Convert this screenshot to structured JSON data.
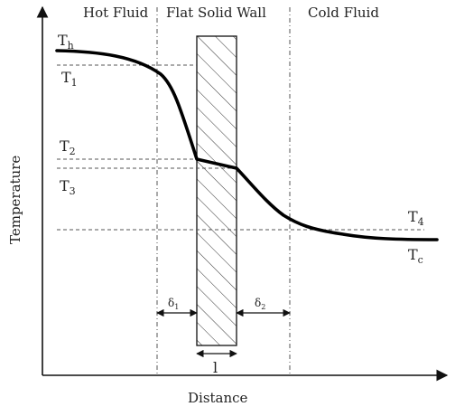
{
  "regions": {
    "hot": "Hot Fluid",
    "wall": "Flat Solid Wall",
    "cold": "Cold Fluid"
  },
  "axes": {
    "x_label": "Distance",
    "y_label": "Temperature"
  },
  "temps": {
    "Th": {
      "base": "T",
      "sub": "h"
    },
    "T1": {
      "base": "T",
      "sub": "1"
    },
    "T2": {
      "base": "T",
      "sub": "2"
    },
    "T3": {
      "base": "T",
      "sub": "3"
    },
    "T4": {
      "base": "T",
      "sub": "4"
    },
    "Tc": {
      "base": "T",
      "sub": "c"
    }
  },
  "dims": {
    "delta1": {
      "base": "δ",
      "sub": "1"
    },
    "delta2": {
      "base": "δ",
      "sub": "2"
    },
    "wall_thickness": "l"
  }
}
